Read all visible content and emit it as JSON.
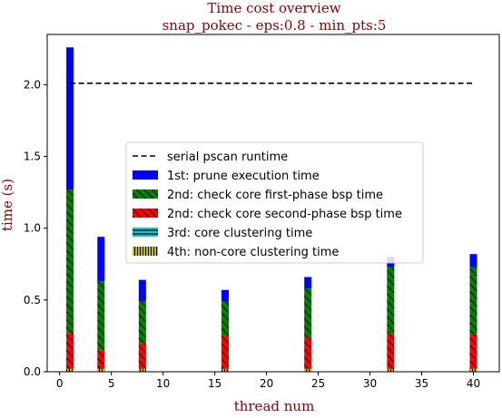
{
  "chart_data": {
    "type": "bar",
    "stacked": true,
    "title": "Time cost overview",
    "subtitle": "snap_pokec - eps:0.8 - min_pts:5",
    "xlabel": "thread num",
    "ylabel": "time (s)",
    "xlim": [
      -1.2,
      42.5
    ],
    "ylim": [
      0,
      2.35
    ],
    "xticks": [
      0,
      5,
      10,
      15,
      20,
      25,
      30,
      35,
      40
    ],
    "yticks": [
      0.0,
      0.5,
      1.0,
      1.5,
      2.0
    ],
    "x": [
      1,
      4,
      8,
      16,
      24,
      32,
      40
    ],
    "legend_position": "center",
    "series": [
      {
        "name": "4th: non-core clustering time",
        "color": "#bfbf00",
        "hatch": "vertical",
        "values": [
          0.02,
          0.02,
          0.02,
          0.02,
          0.02,
          0.02,
          0.02
        ]
      },
      {
        "name": "3rd: core clustering time",
        "color": "#17becf",
        "hatch": "horizontal",
        "values": [
          0.0,
          0.0,
          0.0,
          0.0,
          0.0,
          0.0,
          0.0
        ]
      },
      {
        "name": "2nd: check core second-phase bsp time",
        "color": "#ff0000",
        "hatch": "diagonal",
        "values": [
          0.25,
          0.13,
          0.18,
          0.23,
          0.22,
          0.24,
          0.24
        ]
      },
      {
        "name": "2nd: check core first-phase bsp time",
        "color": "#008000",
        "hatch": "diagonal",
        "values": [
          1.0,
          0.48,
          0.29,
          0.24,
          0.34,
          0.47,
          0.47
        ]
      },
      {
        "name": "1st: prune execution time",
        "color": "#0000ff",
        "hatch": "none",
        "values": [
          0.99,
          0.31,
          0.15,
          0.08,
          0.08,
          0.07,
          0.09
        ]
      }
    ],
    "reference_line": {
      "name": "serial pscan runtime",
      "y": 2.01,
      "x_range": [
        1,
        40
      ],
      "style": "dashed",
      "color": "#000000"
    },
    "legend_order": [
      "serial pscan runtime",
      "1st: prune execution time",
      "2nd: check core first-phase bsp time",
      "2nd: check core second-phase bsp time",
      "3rd: core clustering time",
      "4th: non-core clustering time"
    ],
    "colors": {
      "title": "#8b0000",
      "axis_label": "#8b0000"
    }
  }
}
